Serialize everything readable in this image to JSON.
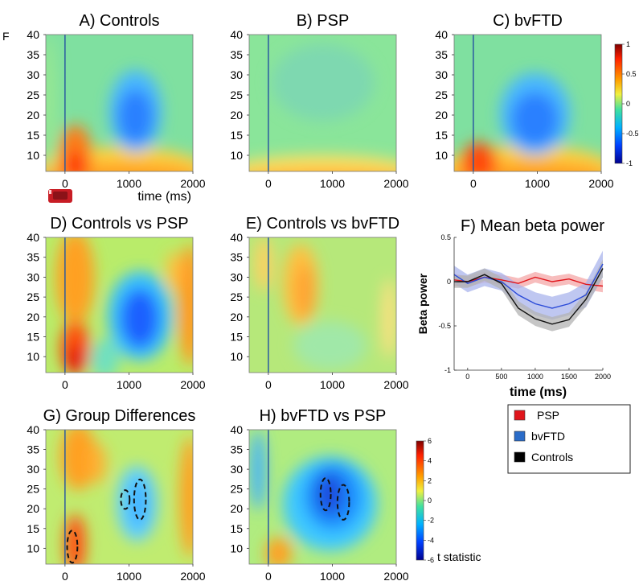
{
  "figure_letter": "F",
  "colorbar_power": {
    "ticks": [
      "1",
      "0.5",
      "0",
      "-0.5",
      "-1"
    ]
  },
  "colorbar_t": {
    "ticks": [
      "6",
      "4",
      "2",
      "0",
      "-2",
      "-4",
      "-6"
    ],
    "label": "t statistic"
  },
  "legend": {
    "items": [
      {
        "label": "PSP",
        "color": "#e0151b"
      },
      {
        "label": "bvFTD",
        "color": "#2a6cc8"
      },
      {
        "label": "Controls",
        "color": "#000000"
      }
    ]
  },
  "time_axis_label": "time (ms)",
  "chart_data": [
    {
      "type": "heatmap",
      "title": "A) Controls",
      "xlabel": "time (ms)",
      "xticks": [
        "0",
        "1000",
        "2000"
      ],
      "yticks": [
        "40",
        "35",
        "30",
        "25",
        "20",
        "15",
        "10"
      ],
      "xlim": [
        -300,
        2000
      ],
      "ylim": [
        6,
        40
      ],
      "colorbar": "power"
    },
    {
      "type": "heatmap",
      "title": "B) PSP",
      "xticks": [
        "0",
        "1000",
        "2000"
      ],
      "yticks": [
        "40",
        "35",
        "30",
        "25",
        "20",
        "15",
        "10"
      ],
      "xlim": [
        -300,
        2000
      ],
      "ylim": [
        6,
        40
      ],
      "colorbar": "power"
    },
    {
      "type": "heatmap",
      "title": "C) bvFTD",
      "xticks": [
        "0",
        "1000",
        "2000"
      ],
      "yticks": [
        "40",
        "35",
        "30",
        "25",
        "20",
        "15",
        "10"
      ],
      "xlim": [
        -300,
        2000
      ],
      "ylim": [
        6,
        40
      ],
      "colorbar": "power"
    },
    {
      "type": "heatmap",
      "title": "D) Controls vs PSP",
      "xticks": [
        "0",
        "1000",
        "2000"
      ],
      "yticks": [
        "40",
        "35",
        "30",
        "25",
        "20",
        "15",
        "10"
      ],
      "xlim": [
        -300,
        2000
      ],
      "ylim": [
        6,
        40
      ],
      "colorbar": "t"
    },
    {
      "type": "heatmap",
      "title": "E) Controls vs bvFTD",
      "xticks": [
        "0",
        "1000",
        "2000"
      ],
      "yticks": [
        "40",
        "35",
        "30",
        "25",
        "20",
        "15",
        "10"
      ],
      "xlim": [
        -300,
        2000
      ],
      "ylim": [
        6,
        40
      ],
      "colorbar": "t"
    },
    {
      "type": "line",
      "title": "F) Mean beta power",
      "xlabel": "time (ms)",
      "ylabel": "Beta power",
      "xticks": [
        "0",
        "500",
        "1000",
        "1500",
        "2000"
      ],
      "yticks": [
        "0.5",
        "0",
        "-0.5",
        "-1"
      ],
      "xlim": [
        -200,
        2000
      ],
      "ylim": [
        -1,
        0.5
      ],
      "x": [
        -200,
        0,
        250,
        500,
        750,
        1000,
        1250,
        1500,
        1750,
        2000
      ],
      "series": [
        {
          "name": "PSP",
          "color": "#e0151b",
          "band": "#f4a7a7",
          "values": [
            0.02,
            0.0,
            0.05,
            0.02,
            -0.02,
            0.05,
            0.0,
            0.03,
            -0.03,
            -0.05
          ],
          "err": [
            0.07,
            0.06,
            0.06,
            0.06,
            0.06,
            0.06,
            0.06,
            0.06,
            0.06,
            0.07
          ]
        },
        {
          "name": "bvFTD",
          "color": "#2a4ad8",
          "band": "#a9b4ec",
          "values": [
            0.08,
            -0.02,
            0.05,
            0.0,
            -0.15,
            -0.25,
            -0.3,
            -0.25,
            -0.15,
            0.2
          ],
          "err": [
            0.1,
            0.1,
            0.1,
            0.1,
            0.12,
            0.13,
            0.13,
            0.13,
            0.14,
            0.15
          ]
        },
        {
          "name": "Controls",
          "color": "#111111",
          "band": "#b3b3b3",
          "values": [
            0.0,
            0.0,
            0.08,
            -0.02,
            -0.3,
            -0.42,
            -0.48,
            -0.43,
            -0.2,
            0.15
          ],
          "err": [
            0.07,
            0.07,
            0.07,
            0.07,
            0.08,
            0.08,
            0.08,
            0.08,
            0.08,
            0.1
          ]
        }
      ]
    },
    {
      "type": "heatmap",
      "title": "G) Group Differences",
      "xticks": [
        "0",
        "1000",
        "2000"
      ],
      "yticks": [
        "40",
        "35",
        "30",
        "25",
        "20",
        "15",
        "10"
      ],
      "xlim": [
        -300,
        2000
      ],
      "ylim": [
        6,
        40
      ],
      "colorbar": "t"
    },
    {
      "type": "heatmap",
      "title": "H) bvFTD vs PSP",
      "xticks": [
        "0",
        "1000",
        "2000"
      ],
      "yticks": [
        "40",
        "35",
        "30",
        "25",
        "20",
        "15",
        "10"
      ],
      "xlim": [
        -300,
        2000
      ],
      "ylim": [
        6,
        40
      ],
      "colorbar": "t"
    }
  ]
}
